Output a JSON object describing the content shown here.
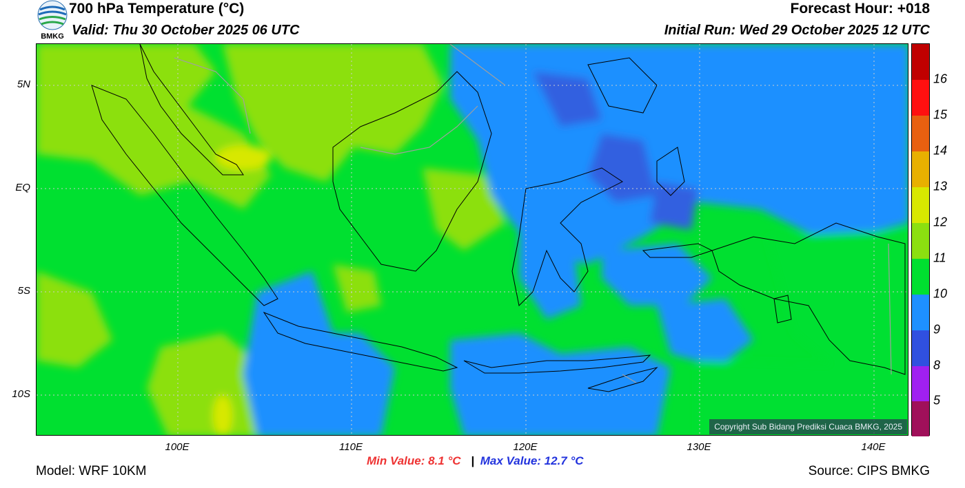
{
  "header": {
    "title": "700 hPa Temperature (°C)",
    "valid": "Valid: Thu 30 October 2025 06 UTC",
    "forecast_hour": "Forecast Hour: +018",
    "initial_run": "Initial Run: Wed 29 October 2025 12 UTC",
    "logo_text": "BMKG"
  },
  "axes": {
    "lat_labels": [
      "5N",
      "EQ",
      "5S",
      "10S"
    ],
    "lon_labels": [
      "100E",
      "110E",
      "120E",
      "130E",
      "140E"
    ]
  },
  "colorbar": {
    "labels": [
      "16",
      "15",
      "14",
      "13",
      "12",
      "11",
      "10",
      "9",
      "8",
      "5"
    ],
    "colors": [
      "#c00000",
      "#ff1010",
      "#e86010",
      "#e8b000",
      "#d8e800",
      "#8ce010",
      "#00e030",
      "#1e90ff",
      "#3050e0",
      "#a020f0",
      "#a0105a"
    ]
  },
  "stats": {
    "min": "Min Value: 8.1 °C",
    "separator": "|",
    "max": "Max Value: 12.7 °C"
  },
  "footer": {
    "model": "Model: WRF 10KM",
    "source": "Source: CIPS BMKG",
    "copyright": "Copyright Sub Bidang Prediksi Cuaca BMKG, 2025"
  },
  "map_colors": {
    "t9": "#1e90ff",
    "t8": "#3060e0",
    "t10": "#00e030",
    "t11": "#8ce010",
    "t12": "#c8e000"
  }
}
